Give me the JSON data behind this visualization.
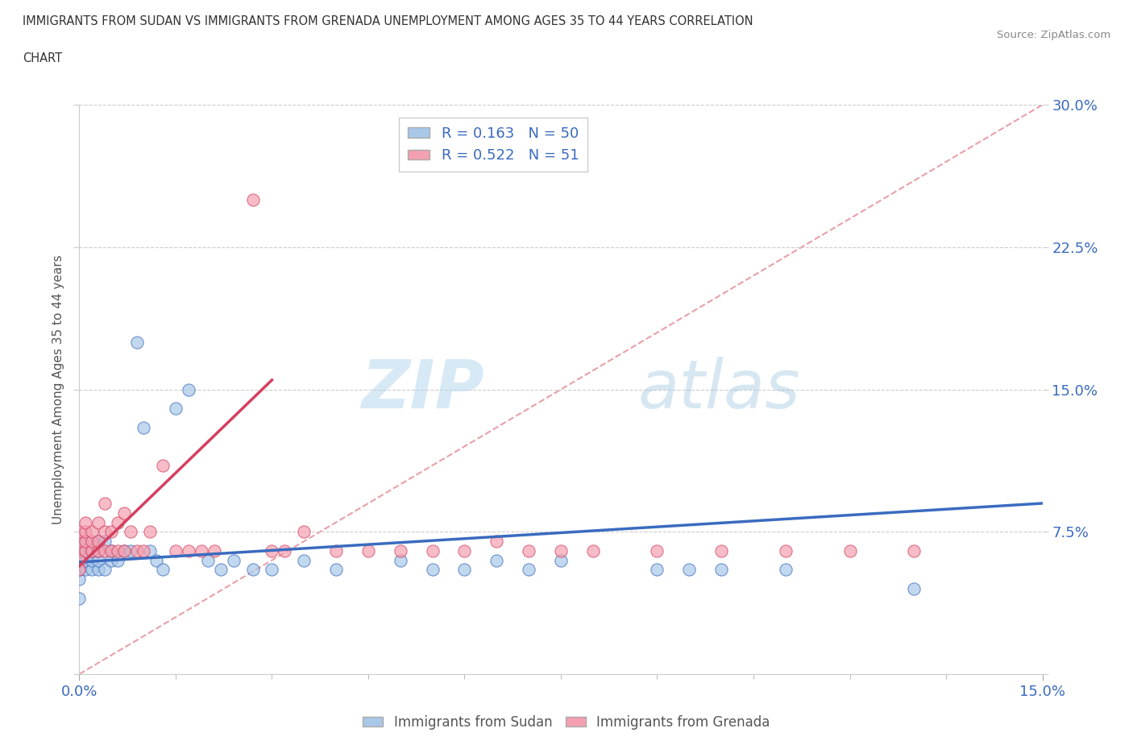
{
  "title_line1": "IMMIGRANTS FROM SUDAN VS IMMIGRANTS FROM GRENADA UNEMPLOYMENT AMONG AGES 35 TO 44 YEARS CORRELATION",
  "title_line2": "CHART",
  "source": "Source: ZipAtlas.com",
  "ylabel": "Unemployment Among Ages 35 to 44 years",
  "xlim": [
    0.0,
    0.15
  ],
  "ylim": [
    0.0,
    0.3
  ],
  "yticks": [
    0.0,
    0.075,
    0.15,
    0.225,
    0.3
  ],
  "ytick_labels": [
    "",
    "7.5%",
    "15.0%",
    "22.5%",
    "30.0%"
  ],
  "sudan_color": "#a8c8e8",
  "grenada_color": "#f4a0b0",
  "sudan_line_color": "#3a6bbf",
  "grenada_line_color": "#d44060",
  "diagonal_color": "#e8a0a8",
  "R_sudan": 0.163,
  "N_sudan": 50,
  "R_grenada": 0.522,
  "N_grenada": 51,
  "watermark_zip": "ZIP",
  "watermark_atlas": "atlas",
  "background_color": "#ffffff",
  "sudan_points_x": [
    0.0,
    0.0,
    0.0,
    0.0,
    0.0,
    0.0,
    0.0,
    0.001,
    0.001,
    0.001,
    0.001,
    0.002,
    0.002,
    0.002,
    0.003,
    0.003,
    0.003,
    0.003,
    0.004,
    0.004,
    0.005,
    0.005,
    0.006,
    0.007,
    0.008,
    0.009,
    0.01,
    0.011,
    0.012,
    0.013,
    0.015,
    0.017,
    0.02,
    0.022,
    0.024,
    0.027,
    0.03,
    0.035,
    0.04,
    0.05,
    0.055,
    0.06,
    0.065,
    0.07,
    0.075,
    0.09,
    0.095,
    0.1,
    0.11,
    0.13
  ],
  "sudan_points_y": [
    0.055,
    0.06,
    0.065,
    0.04,
    0.05,
    0.055,
    0.06,
    0.055,
    0.06,
    0.065,
    0.07,
    0.055,
    0.06,
    0.065,
    0.055,
    0.06,
    0.065,
    0.07,
    0.055,
    0.07,
    0.06,
    0.065,
    0.06,
    0.065,
    0.065,
    0.175,
    0.13,
    0.065,
    0.06,
    0.055,
    0.14,
    0.15,
    0.06,
    0.055,
    0.06,
    0.055,
    0.055,
    0.06,
    0.055,
    0.06,
    0.055,
    0.055,
    0.06,
    0.055,
    0.06,
    0.055,
    0.055,
    0.055,
    0.055,
    0.045
  ],
  "grenada_points_x": [
    0.0,
    0.0,
    0.0,
    0.0,
    0.0,
    0.001,
    0.001,
    0.001,
    0.001,
    0.002,
    0.002,
    0.002,
    0.003,
    0.003,
    0.003,
    0.004,
    0.004,
    0.004,
    0.005,
    0.005,
    0.006,
    0.006,
    0.007,
    0.007,
    0.008,
    0.009,
    0.01,
    0.011,
    0.013,
    0.015,
    0.017,
    0.019,
    0.021,
    0.027,
    0.03,
    0.032,
    0.035,
    0.04,
    0.045,
    0.05,
    0.055,
    0.06,
    0.065,
    0.07,
    0.075,
    0.08,
    0.09,
    0.1,
    0.11,
    0.12,
    0.13
  ],
  "grenada_points_y": [
    0.065,
    0.07,
    0.075,
    0.06,
    0.055,
    0.065,
    0.07,
    0.075,
    0.08,
    0.065,
    0.07,
    0.075,
    0.065,
    0.07,
    0.08,
    0.065,
    0.075,
    0.09,
    0.065,
    0.075,
    0.065,
    0.08,
    0.065,
    0.085,
    0.075,
    0.065,
    0.065,
    0.075,
    0.11,
    0.065,
    0.065,
    0.065,
    0.065,
    0.25,
    0.065,
    0.065,
    0.075,
    0.065,
    0.065,
    0.065,
    0.065,
    0.065,
    0.07,
    0.065,
    0.065,
    0.065,
    0.065,
    0.065,
    0.065,
    0.065,
    0.065
  ],
  "sudan_trend_x0": 0.0,
  "sudan_trend_y0": 0.059,
  "sudan_trend_x1": 0.15,
  "sudan_trend_y1": 0.09,
  "grenada_trend_x0": 0.0,
  "grenada_trend_y0": 0.057,
  "grenada_trend_x1": 0.03,
  "grenada_trend_y1": 0.155
}
